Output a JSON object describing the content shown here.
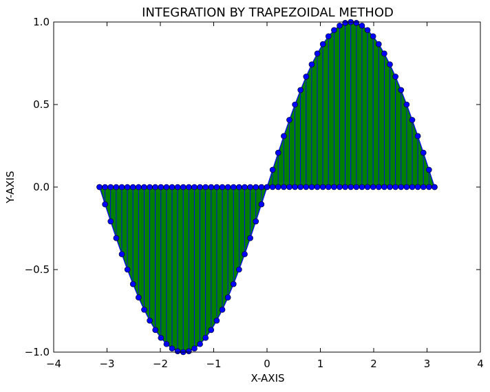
{
  "chart_data": {
    "type": "area",
    "title": "INTEGRATION BY TRAPEZOIDAL METHOD",
    "xlabel": "X-AXIS",
    "ylabel": "Y-AXIS",
    "xlim": [
      -4,
      4
    ],
    "ylim": [
      -1.0,
      1.0
    ],
    "xticks": [
      -4,
      -3,
      -2,
      -1,
      0,
      1,
      2,
      3,
      4
    ],
    "xtick_labels": [
      "−4",
      "−3",
      "−2",
      "−1",
      "0",
      "1",
      "2",
      "3",
      "4"
    ],
    "yticks": [
      -1.0,
      -0.5,
      0.0,
      0.5,
      1.0
    ],
    "ytick_labels": [
      "−1.0",
      "−0.5",
      "0.0",
      "0.5",
      "1.0"
    ],
    "grid": false,
    "series": [
      {
        "function": "sin(x)",
        "x_start": -3.14159,
        "x_end": 3.14159,
        "num_points": 61,
        "fill_color": "#008000",
        "line_color": "#0000ff",
        "marker_color": "#0000ff",
        "marker": "circle",
        "baseline_markers": true
      }
    ]
  }
}
